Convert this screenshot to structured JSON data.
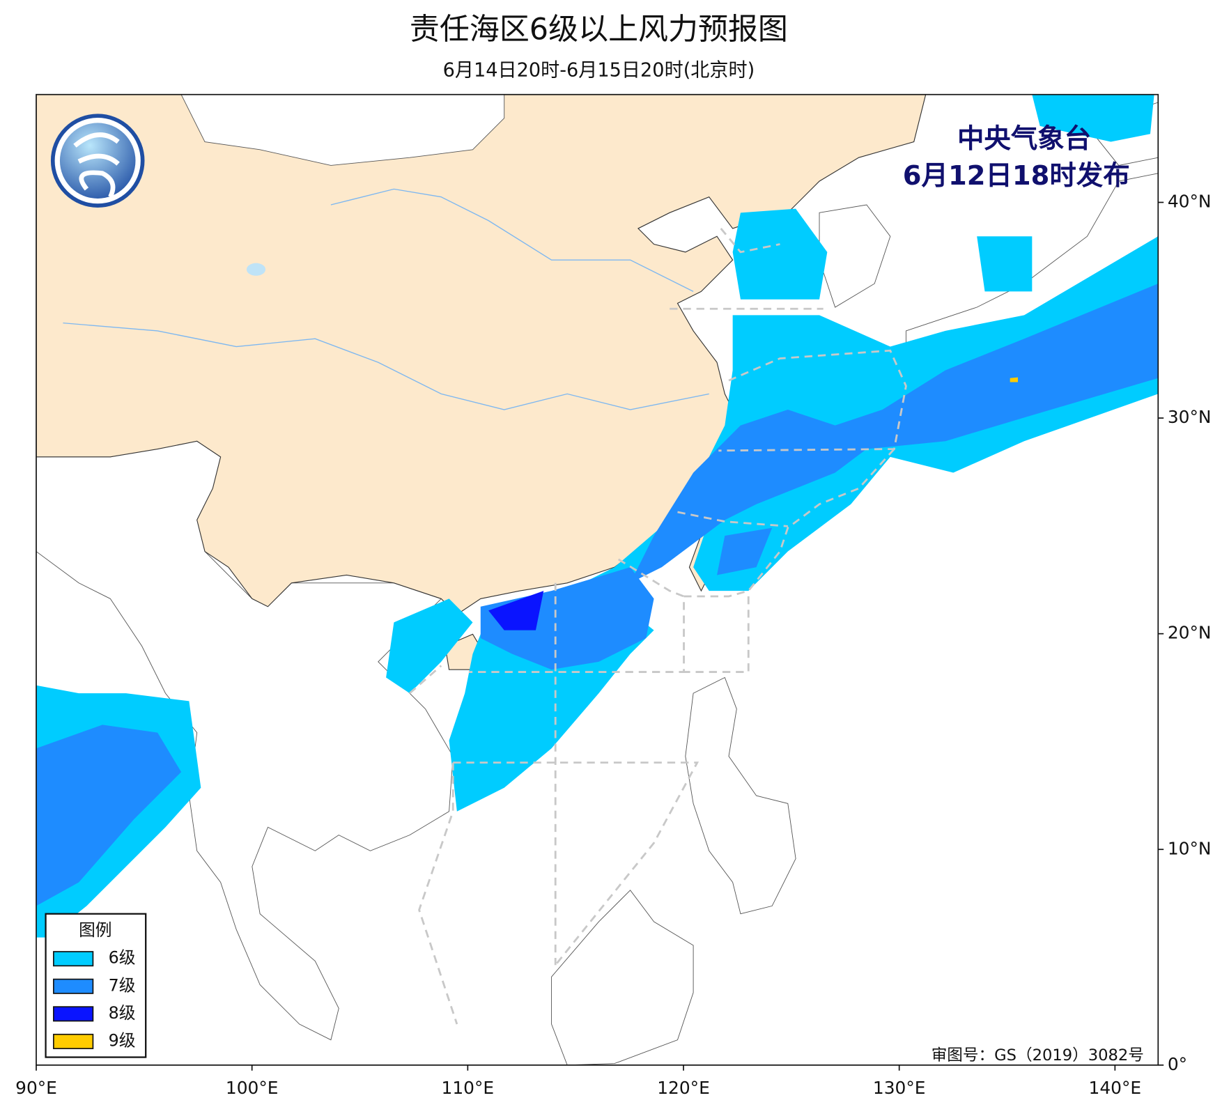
{
  "header": {
    "title": "责任海区6级以上风力预报图",
    "subtitle": "6月14日20时-6月15日20时(北京时)"
  },
  "issuer": {
    "name": "中央气象台",
    "time": "6月12日18时发布"
  },
  "legend": {
    "title": "图例",
    "items": [
      {
        "label": "6级",
        "color": "#00ccff"
      },
      {
        "label": "7级",
        "color": "#1e8cff"
      },
      {
        "label": "8级",
        "color": "#0a14ff"
      },
      {
        "label": "9级",
        "color": "#ffcc00"
      }
    ]
  },
  "map": {
    "lon_range": [
      90,
      142
    ],
    "lat_range": [
      0,
      45
    ],
    "lon_ticks": [
      {
        "value": 90,
        "label": "90°E"
      },
      {
        "value": 100,
        "label": "100°E"
      },
      {
        "value": 110,
        "label": "110°E"
      },
      {
        "value": 120,
        "label": "120°E"
      },
      {
        "value": 130,
        "label": "130°E"
      },
      {
        "value": 140,
        "label": "140°E"
      }
    ],
    "lat_ticks": [
      {
        "value": 0,
        "label": "0°"
      },
      {
        "value": 10,
        "label": "10°N"
      },
      {
        "value": 20,
        "label": "20°N"
      },
      {
        "value": 30,
        "label": "30°N"
      },
      {
        "value": 40,
        "label": "40°N"
      }
    ]
  },
  "credit": "审图号：GS（2019）3082号"
}
